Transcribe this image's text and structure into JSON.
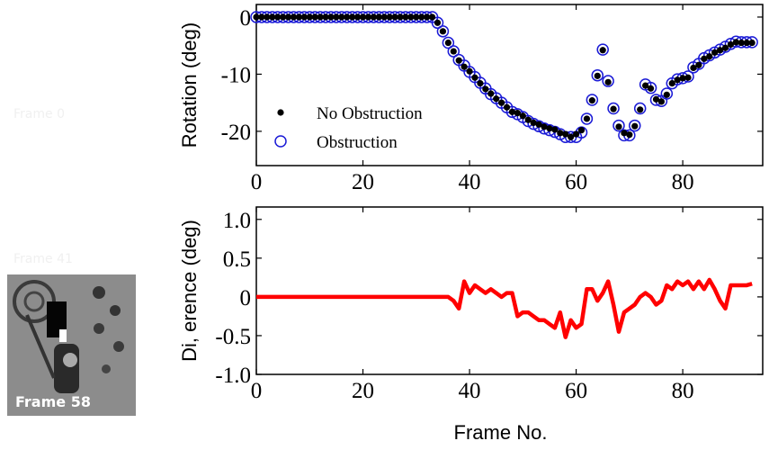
{
  "image_labels": [
    "Frame 0",
    "Frame 41",
    "Frame 58"
  ],
  "chart_data": [
    {
      "type": "scatter",
      "ylabel": "Rotation (deg)",
      "legend": "lower left",
      "xlim": [
        0,
        95
      ],
      "ylim": [
        -26,
        2.2
      ],
      "xticks": [
        0,
        20,
        40,
        60,
        80
      ],
      "yticks": [
        0,
        -10,
        -20
      ],
      "x": [
        0,
        1,
        2,
        3,
        4,
        5,
        6,
        7,
        8,
        9,
        10,
        11,
        12,
        13,
        14,
        15,
        16,
        17,
        18,
        19,
        20,
        21,
        22,
        23,
        24,
        25,
        26,
        27,
        28,
        29,
        30,
        31,
        32,
        33,
        34,
        35,
        36,
        37,
        38,
        39,
        40,
        41,
        42,
        43,
        44,
        45,
        46,
        47,
        48,
        49,
        50,
        51,
        52,
        53,
        54,
        55,
        56,
        57,
        58,
        59,
        60,
        61,
        62,
        63,
        64,
        65,
        66,
        67,
        68,
        69,
        70,
        71,
        72,
        73,
        74,
        75,
        76,
        77,
        78,
        79,
        80,
        81,
        82,
        83,
        84,
        85,
        86,
        87,
        88,
        89,
        90,
        91,
        92,
        93
      ],
      "series": [
        {
          "name": "No Obstruction",
          "color": "#000000",
          "marker": "dot",
          "values": [
            0,
            0,
            0,
            0,
            0,
            0,
            0,
            0,
            0,
            0,
            0,
            0,
            0,
            0,
            0,
            0,
            0,
            0,
            0,
            0,
            0,
            0,
            0,
            0,
            0,
            0,
            0,
            0,
            0,
            0,
            0,
            0,
            0,
            0,
            -1,
            -2.5,
            -4.5,
            -6,
            -7.6,
            -8.7,
            -9.5,
            -10.6,
            -11.6,
            -12.6,
            -13.4,
            -14.3,
            -15,
            -15.8,
            -16.6,
            -16.8,
            -17.3,
            -18,
            -18.5,
            -18.8,
            -19.2,
            -19.5,
            -19.7,
            -20.3,
            -20.5,
            -21,
            -20.5,
            -19.8,
            -17.8,
            -14.6,
            -10.3,
            -5.8,
            -11.4,
            -16.1,
            -19.2,
            -20.3,
            -20.6,
            -19.1,
            -16.2,
            -12,
            -12.5,
            -14.4,
            -14.8,
            -13.6,
            -11.6,
            -11,
            -10.7,
            -10.6,
            -8.9,
            -8.4,
            -7.3,
            -6.9,
            -6.2,
            -5.8,
            -5.4,
            -4.8,
            -4.4,
            -4.5,
            -4.5,
            -4.5
          ]
        },
        {
          "name": "Obstruction",
          "color": "#1a1ad6",
          "marker": "circle",
          "values": [
            0,
            0,
            0,
            0,
            0,
            0,
            0,
            0,
            0,
            0,
            0,
            0,
            0,
            0,
            0,
            0,
            0,
            0,
            0,
            0,
            0,
            0,
            0,
            0,
            0,
            0,
            0,
            0,
            0,
            0,
            0,
            0,
            0,
            0,
            -1,
            -2.5,
            -4.5,
            -6,
            -7.5,
            -8.5,
            -9.6,
            -10.5,
            -11.5,
            -12.5,
            -13.5,
            -14.2,
            -15,
            -15.8,
            -16.6,
            -17,
            -17.5,
            -18.2,
            -18.7,
            -19.1,
            -19.5,
            -19.8,
            -20.1,
            -20.5,
            -21,
            -21,
            -21,
            -20.2,
            -17.8,
            -14.5,
            -10.2,
            -5.7,
            -11.2,
            -16,
            -19,
            -20.7,
            -20.7,
            -19,
            -16,
            -11.8,
            -12.4,
            -14.5,
            -14.7,
            -13.4,
            -11.6,
            -10.9,
            -10.7,
            -10.4,
            -8.8,
            -8.2,
            -7.2,
            -6.7,
            -6.2,
            -5.7,
            -5.2,
            -4.7,
            -4.3,
            -4.4,
            -4.4,
            -4.4
          ]
        }
      ]
    },
    {
      "type": "line",
      "ylabel": "Di, erence (deg)",
      "xlabel": "Frame No.",
      "xlim": [
        0,
        95
      ],
      "ylim": [
        -1,
        1.16
      ],
      "xticks": [
        0,
        20,
        40,
        60,
        80
      ],
      "yticks": [
        {
          "value": 1,
          "label": "1.0"
        },
        0.5,
        0,
        -0.5,
        {
          "value": -1,
          "label": "-1.0"
        }
      ],
      "x": [
        0,
        1,
        2,
        3,
        4,
        5,
        6,
        7,
        8,
        9,
        10,
        11,
        12,
        13,
        14,
        15,
        16,
        17,
        18,
        19,
        20,
        21,
        22,
        23,
        24,
        25,
        26,
        27,
        28,
        29,
        30,
        31,
        32,
        33,
        34,
        35,
        36,
        37,
        38,
        39,
        40,
        41,
        42,
        43,
        44,
        45,
        46,
        47,
        48,
        49,
        50,
        51,
        52,
        53,
        54,
        55,
        56,
        57,
        58,
        59,
        60,
        61,
        62,
        63,
        64,
        65,
        66,
        67,
        68,
        69,
        70,
        71,
        72,
        73,
        74,
        75,
        76,
        77,
        78,
        79,
        80,
        81,
        82,
        83,
        84,
        85,
        86,
        87,
        88,
        89,
        90,
        91,
        92,
        93
      ],
      "series": [
        {
          "name": "Difference",
          "color": "#ff0000",
          "values": [
            0,
            0,
            0,
            0,
            0,
            0,
            0,
            0,
            0,
            0,
            0,
            0,
            0,
            0,
            0,
            0,
            0,
            0,
            0,
            0,
            0,
            0,
            0,
            0,
            0,
            0,
            0,
            0,
            0,
            0,
            0,
            0,
            0,
            0,
            0,
            0,
            0,
            -0.05,
            -0.15,
            0.2,
            0.05,
            0.15,
            0.1,
            0.05,
            0.1,
            0.05,
            0,
            0.05,
            0.05,
            -0.25,
            -0.2,
            -0.2,
            -0.25,
            -0.3,
            -0.3,
            -0.35,
            -0.4,
            -0.2,
            -0.52,
            -0.3,
            -0.4,
            -0.35,
            0.1,
            0.1,
            -0.05,
            0.05,
            0.2,
            -0.1,
            -0.45,
            -0.2,
            -0.15,
            -0.1,
            0,
            0.05,
            0,
            -0.1,
            -0.05,
            0.15,
            0.1,
            0.2,
            0.15,
            0.2,
            0.1,
            0.2,
            0.1,
            0.22,
            0.1,
            -0.05,
            -0.15,
            0.15,
            0.15,
            0.15,
            0.15,
            0.17
          ]
        }
      ]
    }
  ]
}
